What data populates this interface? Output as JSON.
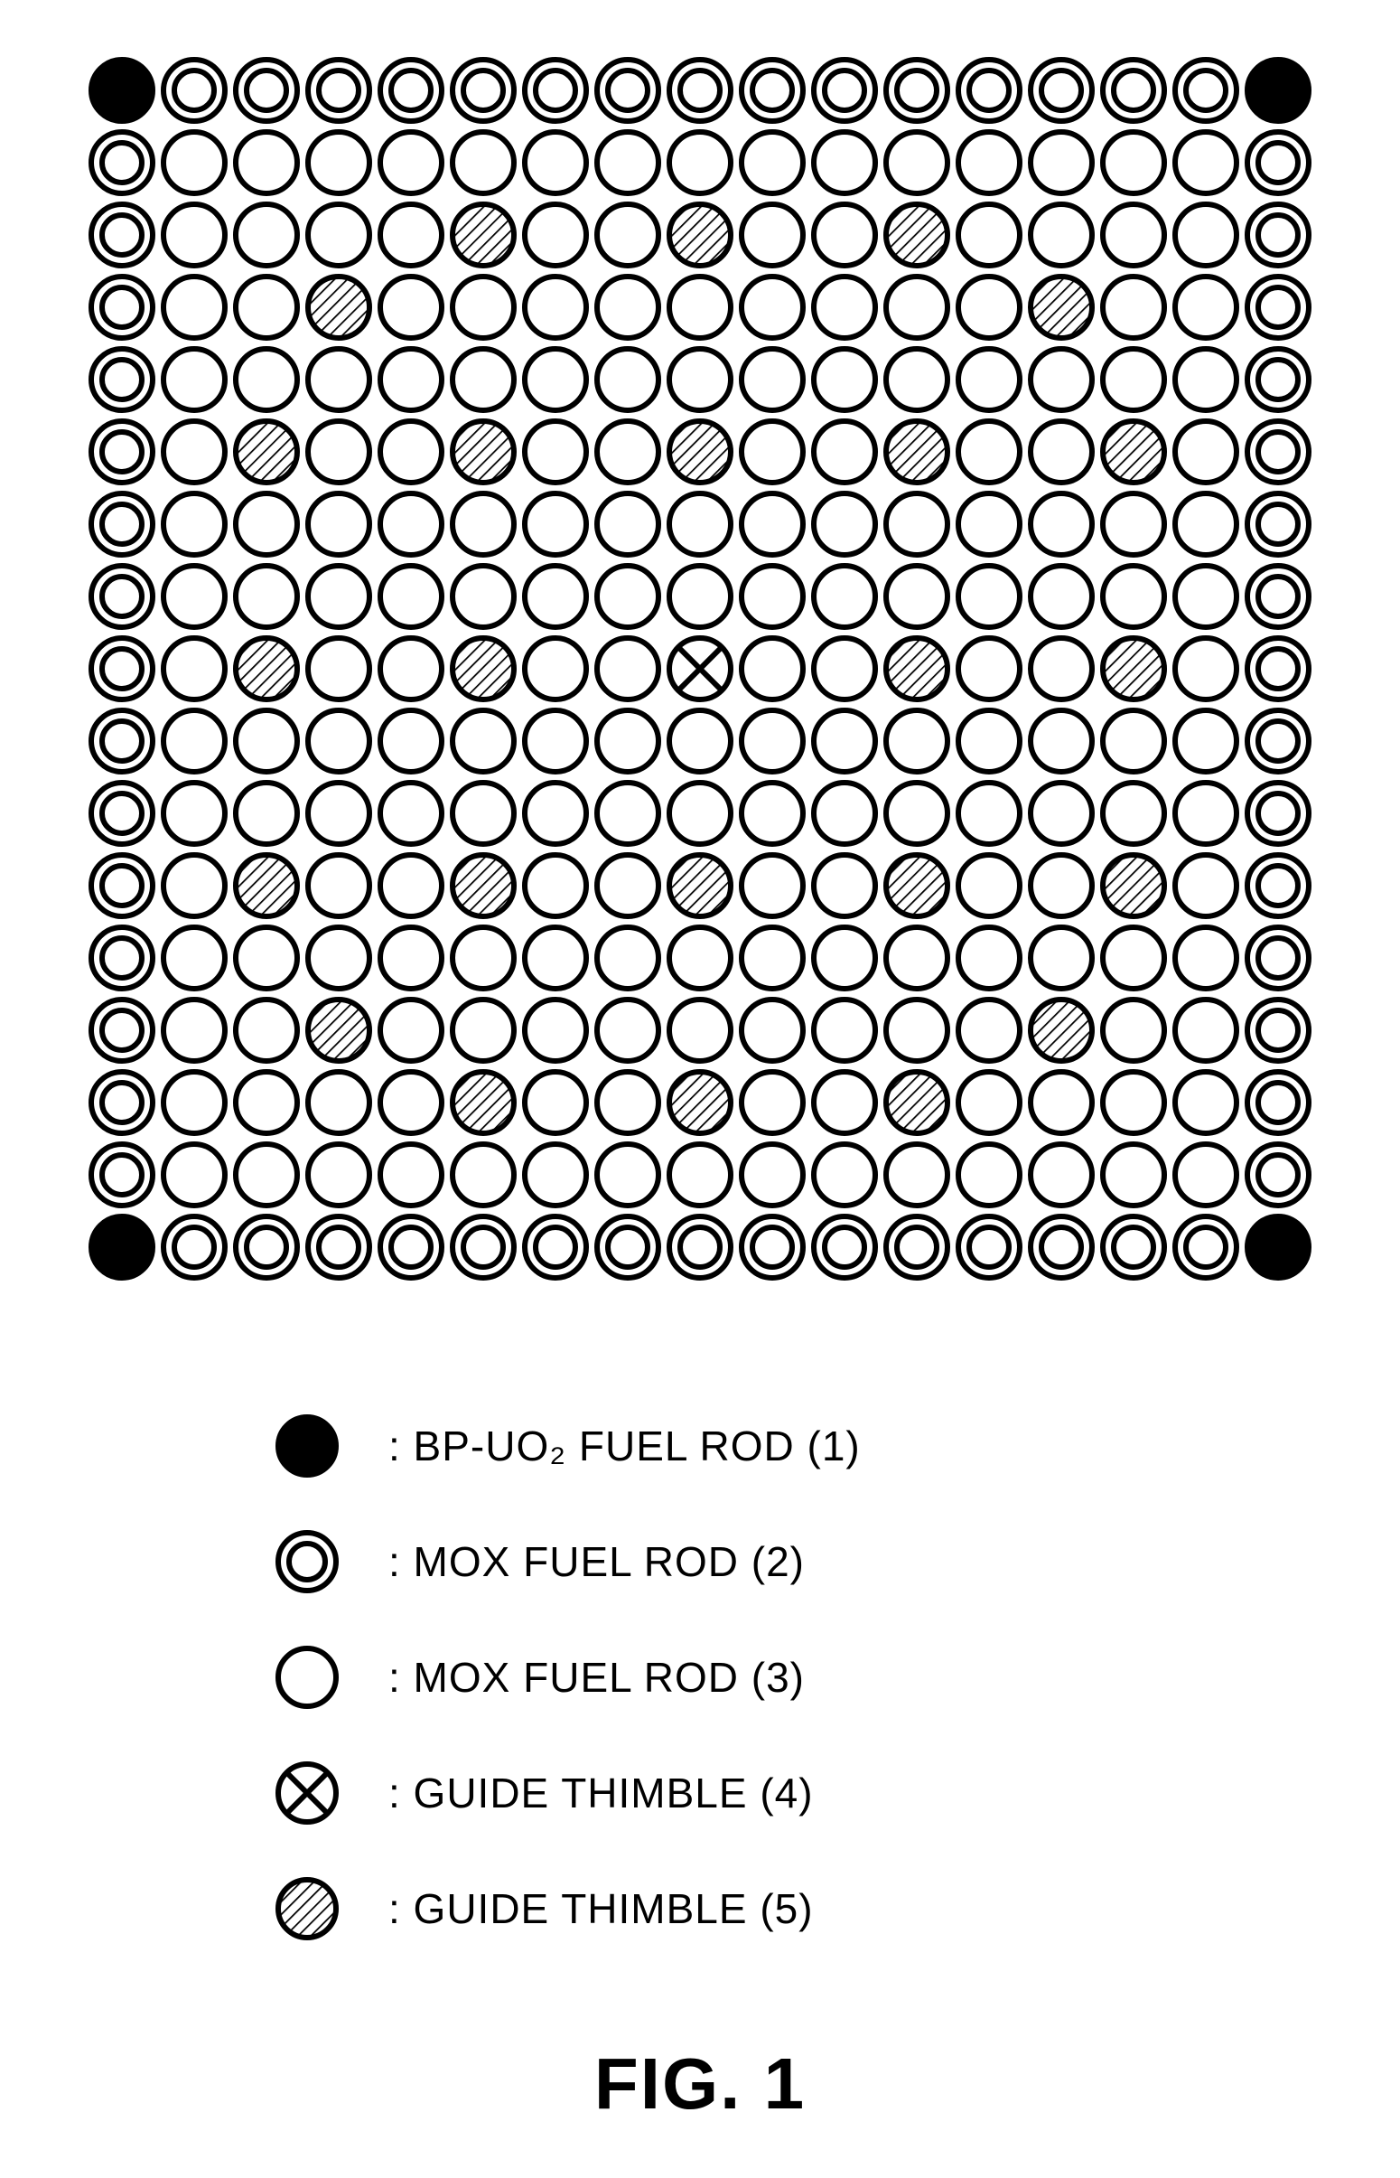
{
  "figure": {
    "caption": "FIG. 1",
    "grid": {
      "rows": 17,
      "cols": 17,
      "cell_size": 80,
      "cell_radius": 34,
      "mox2_inner_radius": 22,
      "stroke_width": 6,
      "stroke_color": "#000000",
      "fill_bp": "#000000",
      "fill_white": "#ffffff",
      "hatch_spacing": 10,
      "layout": [
        "BMMMMMMMMMMMMMMMB",
        "MFFFFFFFFFFFFFFFM",
        "MFFFFHFFHFFHFFFFM",
        "MFFHFFFFFFFFFHFFM",
        "MFFFFFFFFFFFFFFFM",
        "MFHFFHFFHFFHFFHFM",
        "MFFFFFFFFFFFFFFFM",
        "MFFFFFFFFFFFFFFFM",
        "MFHFFHFFXFFHFFHFM",
        "MFFFFFFFFFFFFFFFM",
        "MFFFFFFFFFFFFFFFM",
        "MFHFFHFFHFFHFFHFM",
        "MFFFFFFFFFFFFFFFM",
        "MFFHFFFFFFFFFHFFM",
        "MFFFFHFFHFFHFFFFM",
        "MFFFFFFFFFFFFFFFM",
        "BMMMMMMMMMMMMMMMB"
      ]
    },
    "legend": {
      "font_size": 46,
      "items": [
        {
          "type": "B",
          "label": ": BP-UO₂ FUEL ROD (1)"
        },
        {
          "type": "M",
          "label": ": MOX FUEL ROD (2)"
        },
        {
          "type": "F",
          "label": ": MOX FUEL ROD (3)"
        },
        {
          "type": "X",
          "label": ": GUIDE THIMBLE (4)"
        },
        {
          "type": "H",
          "label": ": GUIDE THIMBLE (5)"
        }
      ]
    }
  }
}
